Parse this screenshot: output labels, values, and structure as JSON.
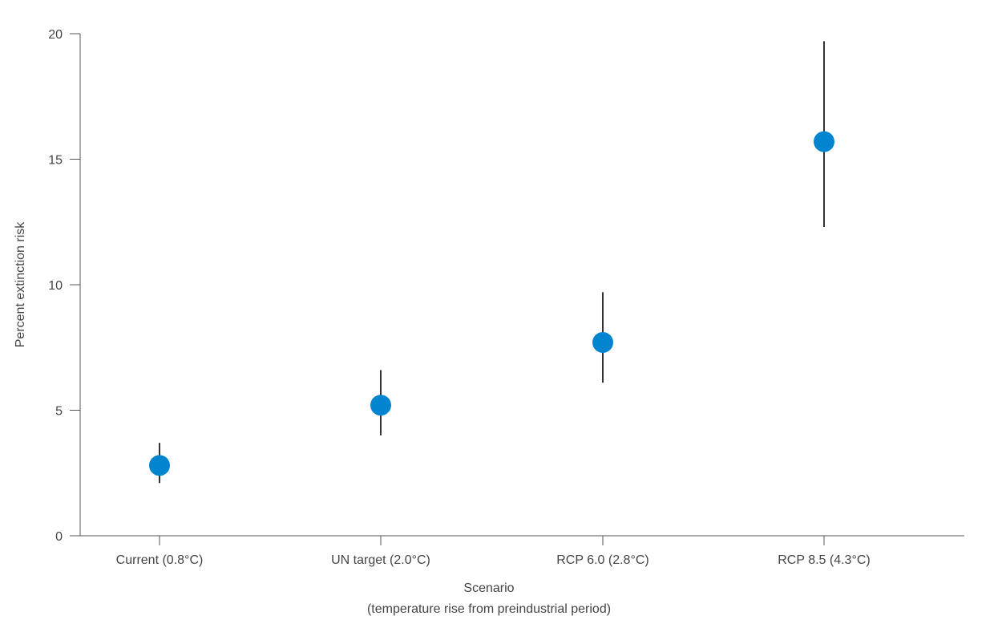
{
  "chart_data": {
    "type": "scatter",
    "title": "",
    "xlabel": "Scenario",
    "xlabel_line2": "(temperature rise from preindustrial period)",
    "ylabel": "Percent extinction risk",
    "ylim": [
      0,
      20
    ],
    "yticks": [
      0,
      5,
      10,
      15,
      20
    ],
    "categories": [
      "Current (0.8°C)",
      "UN target (2.0°C)",
      "RCP 6.0 (2.8°C)",
      "RCP 8.5 (4.3°C)"
    ],
    "series": [
      {
        "values": [
          2.8,
          5.2,
          7.7,
          15.7
        ],
        "error_low": [
          2.1,
          4.0,
          6.1,
          12.3
        ],
        "error_high": [
          3.7,
          6.6,
          9.7,
          19.7
        ]
      }
    ],
    "grid": false,
    "legend": "none",
    "point_color": "#0284ce",
    "error_bar_color": "#333333"
  }
}
